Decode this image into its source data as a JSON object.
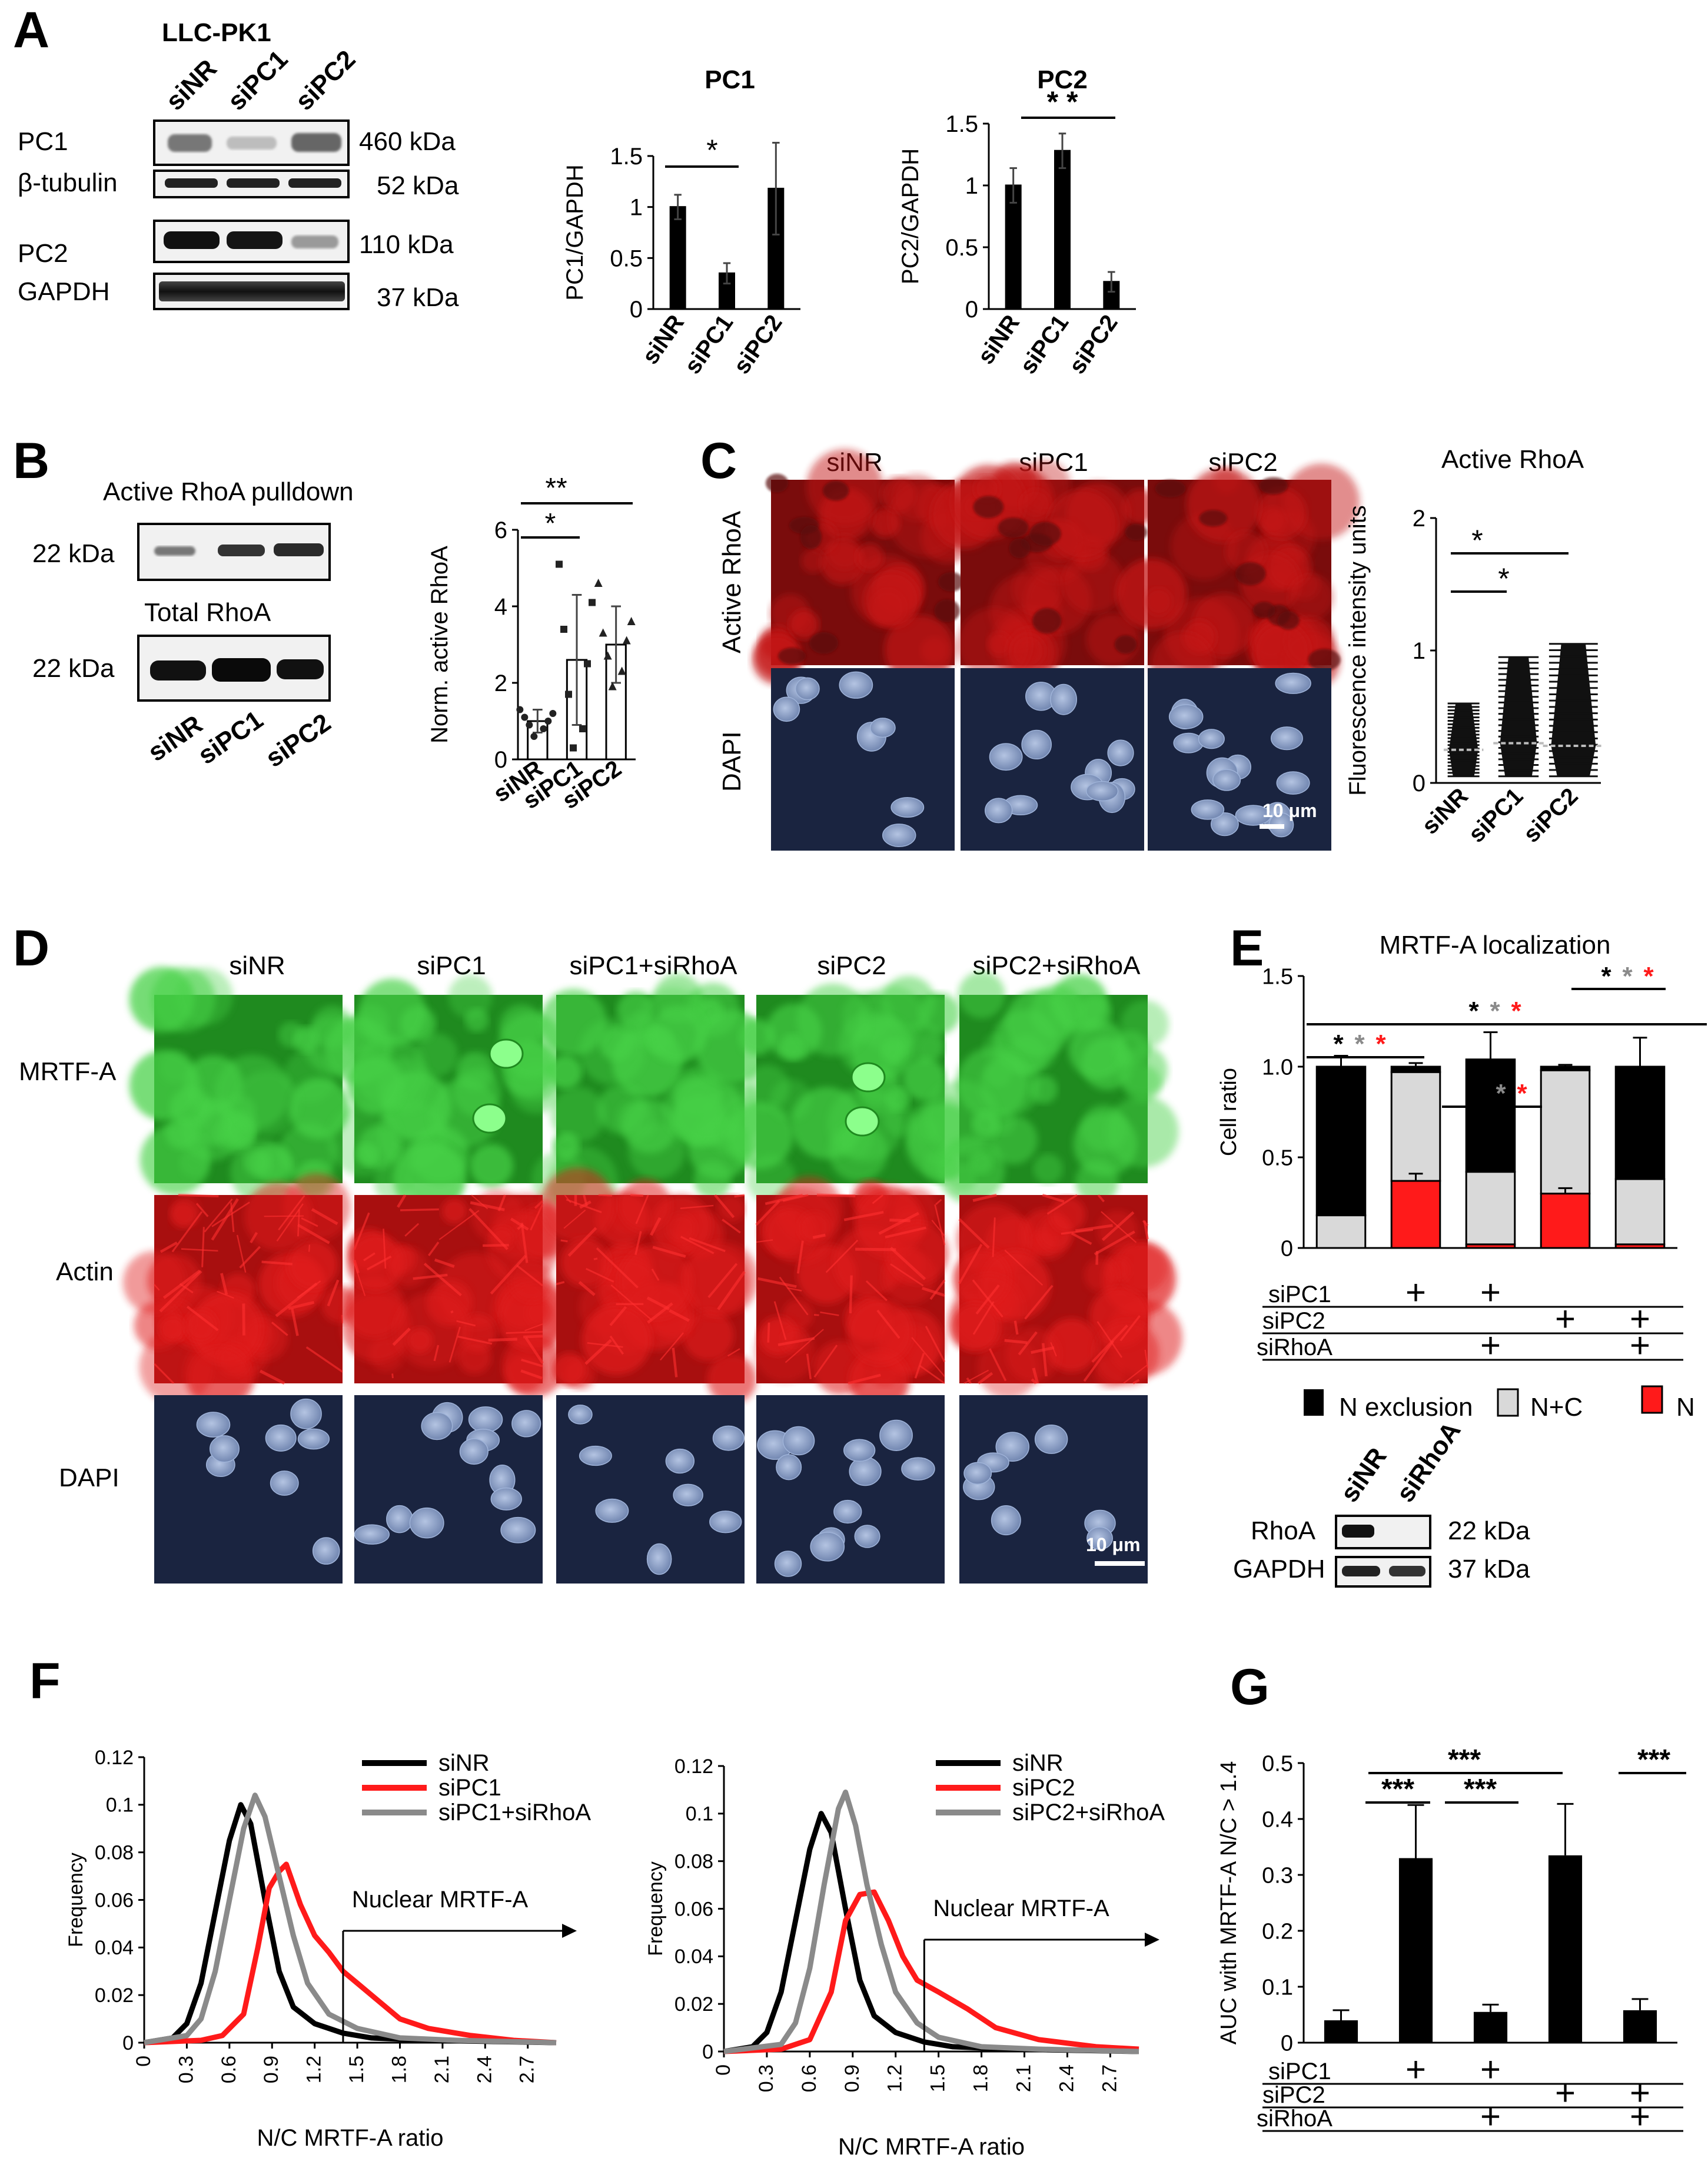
{
  "panels": {
    "A": {
      "letter": "A",
      "cell_line": "LLC-PK1",
      "lanes": [
        "siNR",
        "siPC1",
        "siPC2"
      ],
      "blots": [
        {
          "label": "PC1",
          "kda": "460 kDa"
        },
        {
          "label": "β-tubulin",
          "kda": "52 kDa"
        },
        {
          "label": "PC2",
          "kda": "110 kDa"
        },
        {
          "label": "GAPDH",
          "kda": "37 kDa"
        }
      ],
      "sig_pc1": "*",
      "sig_pc2": "* *"
    },
    "B": {
      "letter": "B",
      "blot1_title": "Active RhoA pulldown",
      "blot2_title": "Total RhoA",
      "kda1": "22 kDa",
      "kda2": "22 kDa",
      "lanes": [
        "siNR",
        "siPC1",
        "siPC2"
      ],
      "sig1": "*",
      "sig2": "**"
    },
    "C": {
      "letter": "C",
      "columns": [
        "siNR",
        "siPC1",
        "siPC2"
      ],
      "rows": [
        "Active RhoA",
        "DAPI"
      ],
      "scale_bar": "10 μm",
      "sig1": "*",
      "sig2": "*"
    },
    "D": {
      "letter": "D",
      "columns": [
        "siNR",
        "siPC1",
        "siPC1+siRhoA",
        "siPC2",
        "siPC2+siRhoA"
      ],
      "rows": [
        "MRTF-A",
        "Actin",
        "DAPI"
      ],
      "scale_bar": "10 μm"
    },
    "E": {
      "letter": "E",
      "conditions": [
        {
          "label": "siPC1",
          "marks": [
            "",
            "+",
            "+",
            "",
            ""
          ]
        },
        {
          "label": "siPC2",
          "marks": [
            "",
            "",
            "",
            "+",
            "+"
          ]
        },
        {
          "label": "siRhoA",
          "marks": [
            "",
            "",
            "+",
            "",
            "+"
          ]
        }
      ],
      "legend": [
        "N exclusion",
        "N+C",
        "N"
      ],
      "sig_marks": [
        "*",
        "*",
        "*"
      ],
      "rhoa_blot": {
        "lanes": [
          "siNR",
          "siRhoA"
        ],
        "rows": [
          {
            "label": "RhoA",
            "kda": "22 kDa"
          },
          {
            "label": "GAPDH",
            "kda": "37 kDa"
          }
        ]
      }
    },
    "F": {
      "letter": "F",
      "annotation": "Nuclear MRTF-A"
    },
    "G": {
      "letter": "G",
      "conditions": [
        {
          "label": "siPC1",
          "marks": [
            "",
            "+",
            "+",
            "",
            ""
          ]
        },
        {
          "label": "siPC2",
          "marks": [
            "",
            "",
            "",
            "+",
            "+"
          ]
        },
        {
          "label": "siRhoA",
          "marks": [
            "",
            "",
            "+",
            "",
            "+"
          ]
        }
      ],
      "sig": "***"
    }
  },
  "colors": {
    "bar": "#000000",
    "red": "#ff1a1a",
    "grey": "#8a8a8a",
    "light_grey": "#d9d9d9",
    "rhoa_img": "#c01818",
    "mrtf_img": "#2fb82f",
    "dapi_img": "#1a2440",
    "nucleus": "#8fa3c8"
  },
  "chart_data": [
    {
      "id": "A_PC1",
      "type": "bar",
      "title": "PC1",
      "ylabel": "PC1/GAPDH",
      "categories": [
        "siNR",
        "siPC1",
        "siPC2"
      ],
      "values": [
        1.0,
        0.35,
        1.18
      ],
      "errors": [
        0.12,
        0.1,
        0.45
      ],
      "ylim": [
        0,
        1.5
      ],
      "yticks": [
        0,
        0.5,
        1,
        1.5
      ],
      "ytick_labels": [
        "0",
        "0.5",
        "1",
        "1.5"
      ]
    },
    {
      "id": "A_PC2",
      "type": "bar",
      "title": "PC2",
      "ylabel": "PC2/GAPDH",
      "categories": [
        "siNR",
        "siPC1",
        "siPC2"
      ],
      "values": [
        1.0,
        1.28,
        0.22
      ],
      "errors": [
        0.14,
        0.14,
        0.08
      ],
      "ylim": [
        0,
        1.5
      ],
      "yticks": [
        0,
        0.5,
        1,
        1.5
      ],
      "ytick_labels": [
        "0",
        "0.5",
        "1",
        "1.5"
      ]
    },
    {
      "id": "B_RhoA",
      "type": "bar",
      "title": "",
      "ylabel": "Norm. active RhoA",
      "categories": [
        "siNR",
        "siPC1",
        "siPC2"
      ],
      "values": [
        1.0,
        2.6,
        3.0
      ],
      "errors": [
        0.3,
        1.7,
        1.0
      ],
      "points": [
        [
          0.6,
          0.8,
          0.9,
          1.0,
          1.1,
          1.2,
          1.3
        ],
        [
          0.3,
          0.8,
          1.7,
          2.5,
          3.4,
          4.1,
          5.1
        ],
        [
          1.9,
          2.3,
          2.7,
          3.1,
          3.3,
          3.6,
          4.6
        ]
      ],
      "markers": [
        "circle",
        "square",
        "triangle"
      ],
      "ylim": [
        0,
        6
      ],
      "yticks": [
        0,
        2,
        4,
        6
      ],
      "ytick_labels": [
        "0",
        "2",
        "4",
        "6"
      ]
    },
    {
      "id": "C_scatter",
      "type": "scatter",
      "title": "Active RhoA",
      "ylabel": "Fluorescence intensity units",
      "categories": [
        "siNR",
        "siPC1",
        "siPC2"
      ],
      "ranges": [
        [
          0.05,
          0.6
        ],
        [
          0.05,
          0.95
        ],
        [
          0.05,
          1.05
        ]
      ],
      "means": [
        0.25,
        0.3,
        0.28
      ],
      "ylim": [
        0,
        2
      ],
      "yticks": [
        0,
        1,
        2
      ],
      "ytick_labels": [
        "0",
        "1",
        "2"
      ]
    },
    {
      "id": "E_stack",
      "type": "bar",
      "title": "MRTF-A localization",
      "ylabel": "Cell ratio",
      "categories": [
        "siNR",
        "siPC1",
        "siPC1+siRhoA",
        "siPC2",
        "siPC2+siRhoA"
      ],
      "series": [
        {
          "name": "N",
          "values": [
            0.0,
            0.37,
            0.02,
            0.3,
            0.02
          ]
        },
        {
          "name": "N+C",
          "values": [
            0.18,
            0.6,
            0.4,
            0.68,
            0.36
          ]
        },
        {
          "name": "N exclusion",
          "values": [
            0.82,
            0.03,
            0.62,
            0.02,
            0.62
          ]
        }
      ],
      "total_errors": [
        0.06,
        0.02,
        0.15,
        0.01,
        0.16
      ],
      "n_errors": [
        0.0,
        0.04,
        0.0,
        0.03,
        0.0
      ],
      "ylim": [
        0,
        1.5
      ],
      "yticks": [
        0,
        0.5,
        1,
        1.5
      ],
      "ytick_labels": [
        "0",
        "0.5",
        "1.0",
        "1.5"
      ]
    },
    {
      "id": "F_left",
      "type": "line",
      "xlabel": "N/C MRTF-A ratio",
      "ylabel": "Frequency",
      "xlim": [
        0,
        2.9
      ],
      "ylim": [
        0,
        0.12
      ],
      "xticks": [
        0,
        0.3,
        0.6,
        0.9,
        1.2,
        1.5,
        1.8,
        2.1,
        2.4,
        2.7
      ],
      "xtick_labels": [
        "0",
        "0.3",
        "0.6",
        "0.9",
        "1.2",
        "1.5",
        "1.8",
        "2.1",
        "2.4",
        "2.7"
      ],
      "yticks": [
        0,
        0.02,
        0.04,
        0.06,
        0.08,
        0.1,
        0.12
      ],
      "ytick_labels": [
        "0",
        "0.02",
        "0.04",
        "0.06",
        "0.08",
        "0.1",
        "0.12"
      ],
      "threshold": 1.4,
      "series": [
        {
          "name": "siNR",
          "color": "#000000",
          "points": [
            [
              0.0,
              0
            ],
            [
              0.2,
              0.002
            ],
            [
              0.3,
              0.008
            ],
            [
              0.4,
              0.025
            ],
            [
              0.5,
              0.055
            ],
            [
              0.6,
              0.085
            ],
            [
              0.68,
              0.1
            ],
            [
              0.75,
              0.092
            ],
            [
              0.85,
              0.06
            ],
            [
              0.95,
              0.03
            ],
            [
              1.05,
              0.015
            ],
            [
              1.2,
              0.008
            ],
            [
              1.4,
              0.004
            ],
            [
              1.6,
              0.002
            ],
            [
              2.0,
              0.001
            ],
            [
              2.9,
              0
            ]
          ]
        },
        {
          "name": "siPC1",
          "color": "#ff1a1a",
          "points": [
            [
              0.0,
              0
            ],
            [
              0.4,
              0.001
            ],
            [
              0.55,
              0.003
            ],
            [
              0.7,
              0.012
            ],
            [
              0.8,
              0.04
            ],
            [
              0.88,
              0.065
            ],
            [
              0.95,
              0.072
            ],
            [
              1.0,
              0.075
            ],
            [
              1.1,
              0.058
            ],
            [
              1.2,
              0.045
            ],
            [
              1.3,
              0.038
            ],
            [
              1.4,
              0.03
            ],
            [
              1.5,
              0.025
            ],
            [
              1.6,
              0.02
            ],
            [
              1.8,
              0.01
            ],
            [
              2.0,
              0.006
            ],
            [
              2.3,
              0.003
            ],
            [
              2.6,
              0.001
            ],
            [
              2.9,
              0
            ]
          ]
        },
        {
          "name": "siPC1+siRhoA",
          "color": "#8a8a8a",
          "points": [
            [
              0.0,
              0
            ],
            [
              0.3,
              0.003
            ],
            [
              0.4,
              0.01
            ],
            [
              0.5,
              0.03
            ],
            [
              0.6,
              0.06
            ],
            [
              0.7,
              0.09
            ],
            [
              0.78,
              0.104
            ],
            [
              0.85,
              0.095
            ],
            [
              0.95,
              0.07
            ],
            [
              1.05,
              0.045
            ],
            [
              1.15,
              0.025
            ],
            [
              1.3,
              0.012
            ],
            [
              1.5,
              0.006
            ],
            [
              1.8,
              0.002
            ],
            [
              2.2,
              0.001
            ],
            [
              2.9,
              0
            ]
          ]
        }
      ],
      "annotation": "Nuclear MRTF-A"
    },
    {
      "id": "F_right",
      "type": "line",
      "xlabel": "N/C MRTF-A ratio",
      "ylabel": "Frequency",
      "xlim": [
        0,
        2.9
      ],
      "ylim": [
        0,
        0.12
      ],
      "xticks": [
        0,
        0.3,
        0.6,
        0.9,
        1.2,
        1.5,
        1.8,
        2.1,
        2.4,
        2.7
      ],
      "xtick_labels": [
        "0",
        "0.3",
        "0.6",
        "0.9",
        "1.2",
        "1.5",
        "1.8",
        "2.1",
        "2.4",
        "2.7"
      ],
      "yticks": [
        0,
        0.02,
        0.04,
        0.06,
        0.08,
        0.1,
        0.12
      ],
      "ytick_labels": [
        "0",
        "0.02",
        "0.04",
        "0.06",
        "0.08",
        "0.1",
        "0.12"
      ],
      "threshold": 1.4,
      "series": [
        {
          "name": "siNR",
          "color": "#000000",
          "points": [
            [
              0.0,
              0
            ],
            [
              0.2,
              0.002
            ],
            [
              0.3,
              0.008
            ],
            [
              0.4,
              0.025
            ],
            [
              0.5,
              0.055
            ],
            [
              0.6,
              0.085
            ],
            [
              0.68,
              0.1
            ],
            [
              0.75,
              0.092
            ],
            [
              0.85,
              0.06
            ],
            [
              0.95,
              0.03
            ],
            [
              1.05,
              0.015
            ],
            [
              1.2,
              0.008
            ],
            [
              1.4,
              0.004
            ],
            [
              1.6,
              0.002
            ],
            [
              2.0,
              0.001
            ],
            [
              2.9,
              0
            ]
          ]
        },
        {
          "name": "siPC2",
          "color": "#ff1a1a",
          "points": [
            [
              0.0,
              0
            ],
            [
              0.4,
              0.001
            ],
            [
              0.6,
              0.005
            ],
            [
              0.75,
              0.025
            ],
            [
              0.85,
              0.055
            ],
            [
              0.95,
              0.066
            ],
            [
              1.05,
              0.067
            ],
            [
              1.15,
              0.055
            ],
            [
              1.25,
              0.04
            ],
            [
              1.35,
              0.03
            ],
            [
              1.5,
              0.025
            ],
            [
              1.7,
              0.018
            ],
            [
              1.9,
              0.01
            ],
            [
              2.2,
              0.005
            ],
            [
              2.6,
              0.002
            ],
            [
              2.9,
              0.001
            ]
          ]
        },
        {
          "name": "siPC2+siRhoA",
          "color": "#8a8a8a",
          "points": [
            [
              0.0,
              0
            ],
            [
              0.4,
              0.003
            ],
            [
              0.5,
              0.012
            ],
            [
              0.6,
              0.035
            ],
            [
              0.7,
              0.07
            ],
            [
              0.8,
              0.102
            ],
            [
              0.85,
              0.109
            ],
            [
              0.92,
              0.095
            ],
            [
              1.0,
              0.07
            ],
            [
              1.1,
              0.045
            ],
            [
              1.2,
              0.025
            ],
            [
              1.35,
              0.012
            ],
            [
              1.5,
              0.006
            ],
            [
              1.8,
              0.002
            ],
            [
              2.2,
              0.001
            ],
            [
              2.9,
              0
            ]
          ]
        }
      ],
      "annotation": "Nuclear MRTF-A"
    },
    {
      "id": "G_auc",
      "type": "bar",
      "title": "",
      "ylabel": "AUC with MRTF-A N/C > 1.4",
      "categories": [
        "siNR",
        "siPC1",
        "siPC1+siRhoA",
        "siPC2",
        "siPC2+siRhoA"
      ],
      "values": [
        0.04,
        0.33,
        0.055,
        0.335,
        0.058
      ],
      "errors": [
        0.018,
        0.095,
        0.013,
        0.092,
        0.02
      ],
      "ylim": [
        0,
        0.5
      ],
      "yticks": [
        0,
        0.1,
        0.2,
        0.3,
        0.4,
        0.5
      ],
      "ytick_labels": [
        "0",
        "0.1",
        "0.2",
        "0.3",
        "0.4",
        "0.5"
      ]
    }
  ]
}
